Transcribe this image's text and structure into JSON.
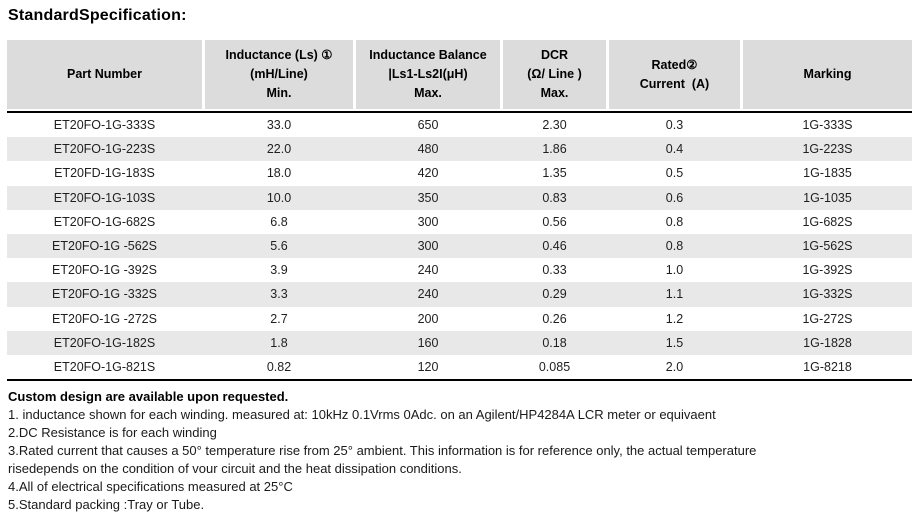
{
  "title": "StandardSpecification:",
  "colors": {
    "header_bg": "#dcdcdc",
    "stripe_bg": "#e8e8e8",
    "rule": "#000000"
  },
  "table": {
    "headers": [
      {
        "lines": [
          "Part Number"
        ]
      },
      {
        "lines": [
          "Inductance (Ls) ①",
          "(mH/Line)",
          "Min."
        ]
      },
      {
        "lines": [
          "Inductance Balance",
          "|Ls1-Ls2I(μH)",
          "Max."
        ]
      },
      {
        "lines": [
          "DCR",
          "(Ω/ Line )",
          "Max."
        ]
      },
      {
        "lines": [
          "Rated②",
          "Current  (A)"
        ]
      },
      {
        "lines": [
          "Marking"
        ]
      }
    ],
    "rows": [
      [
        "ET20FO-1G-333S",
        "33.0",
        "650",
        "2.30",
        "0.3",
        "1G-333S"
      ],
      [
        "ET20FO-1G-223S",
        "22.0",
        "480",
        "1.86",
        "0.4",
        "1G-223S"
      ],
      [
        "ET20FD-1G-183S",
        "18.0",
        "420",
        "1.35",
        "0.5",
        "1G-1835"
      ],
      [
        "ET20FO-1G-103S",
        "10.0",
        "350",
        "0.83",
        "0.6",
        "1G-1035"
      ],
      [
        "ET20FO-1G-682S",
        "6.8",
        "300",
        "0.56",
        "0.8",
        "1G-682S"
      ],
      [
        "ET20FO-1G -562S",
        "5.6",
        "300",
        "0.46",
        "0.8",
        "1G-562S"
      ],
      [
        "ET20FO-1G -392S",
        "3.9",
        "240",
        "0.33",
        "1.0",
        "1G-392S"
      ],
      [
        "ET20FO-1G -332S",
        "3.3",
        "240",
        "0.29",
        "1.1",
        "1G-332S"
      ],
      [
        "ET20FO-1G -272S",
        "2.7",
        "200",
        "0.26",
        "1.2",
        "1G-272S"
      ],
      [
        "ET20FO-1G-182S",
        "1.8",
        "160",
        "0.18",
        "1.5",
        "1G-1828"
      ],
      [
        "ET20FO-1G-821S",
        "0.82",
        "120",
        "0.085",
        "2.0",
        "1G-8218"
      ]
    ]
  },
  "notes": {
    "heading": "Custom design are available upon requested.",
    "lines": [
      "1. inductance shown for each winding. measured at: 10kHz 0.1Vrms 0Adc. on an Agilent/HP4284A LCR meter or equivaent",
      "2.DC Resistance is for each winding",
      "3.Rated current that causes a 50° temperature rise from 25° ambient. This information is for reference only, the actual temperature",
      "risedepends on the condition of vour circuit and the heat dissipation conditions.",
      "4.All of electrical specifications measured at 25°C",
      "5.Standard packing :Tray or Tube."
    ]
  }
}
